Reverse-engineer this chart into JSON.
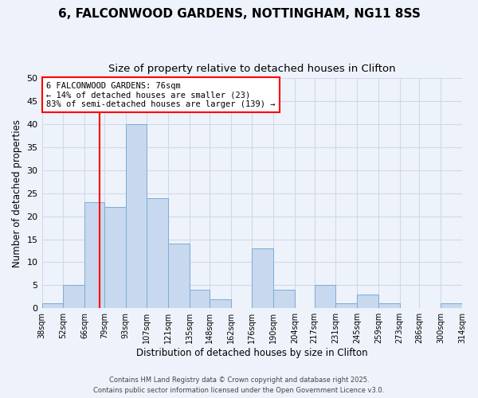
{
  "title1": "6, FALCONWOOD GARDENS, NOTTINGHAM, NG11 8SS",
  "title2": "Size of property relative to detached houses in Clifton",
  "xlabel": "Distribution of detached houses by size in Clifton",
  "ylabel": "Number of detached properties",
  "bins": [
    38,
    52,
    66,
    79,
    93,
    107,
    121,
    135,
    148,
    162,
    176,
    190,
    204,
    217,
    231,
    245,
    259,
    273,
    286,
    300,
    314
  ],
  "counts": [
    1,
    5,
    23,
    22,
    40,
    24,
    14,
    4,
    2,
    0,
    13,
    4,
    0,
    5,
    1,
    3,
    1,
    0,
    0,
    1
  ],
  "bar_color": "#c8d8ee",
  "bar_edge_color": "#7aadd4",
  "property_line_x": 76,
  "annotation_line1": "6 FALCONWOOD GARDENS: 76sqm",
  "annotation_line2": "← 14% of detached houses are smaller (23)",
  "annotation_line3": "83% of semi-detached houses are larger (139) →",
  "annotation_box_color": "white",
  "annotation_box_edge": "red",
  "vline_color": "red",
  "ylim": [
    0,
    50
  ],
  "yticks": [
    0,
    5,
    10,
    15,
    20,
    25,
    30,
    35,
    40,
    45,
    50
  ],
  "footer1": "Contains HM Land Registry data © Crown copyright and database right 2025.",
  "footer2": "Contains public sector information licensed under the Open Government Licence v3.0.",
  "bg_color": "#eef2fa",
  "grid_color": "#d0d8e8",
  "title_fontsize": 11,
  "subtitle_fontsize": 9.5,
  "axis_label_fontsize": 8.5,
  "tick_label_fontsize": 7,
  "annotation_fontsize": 7.5,
  "footer_fontsize": 6
}
